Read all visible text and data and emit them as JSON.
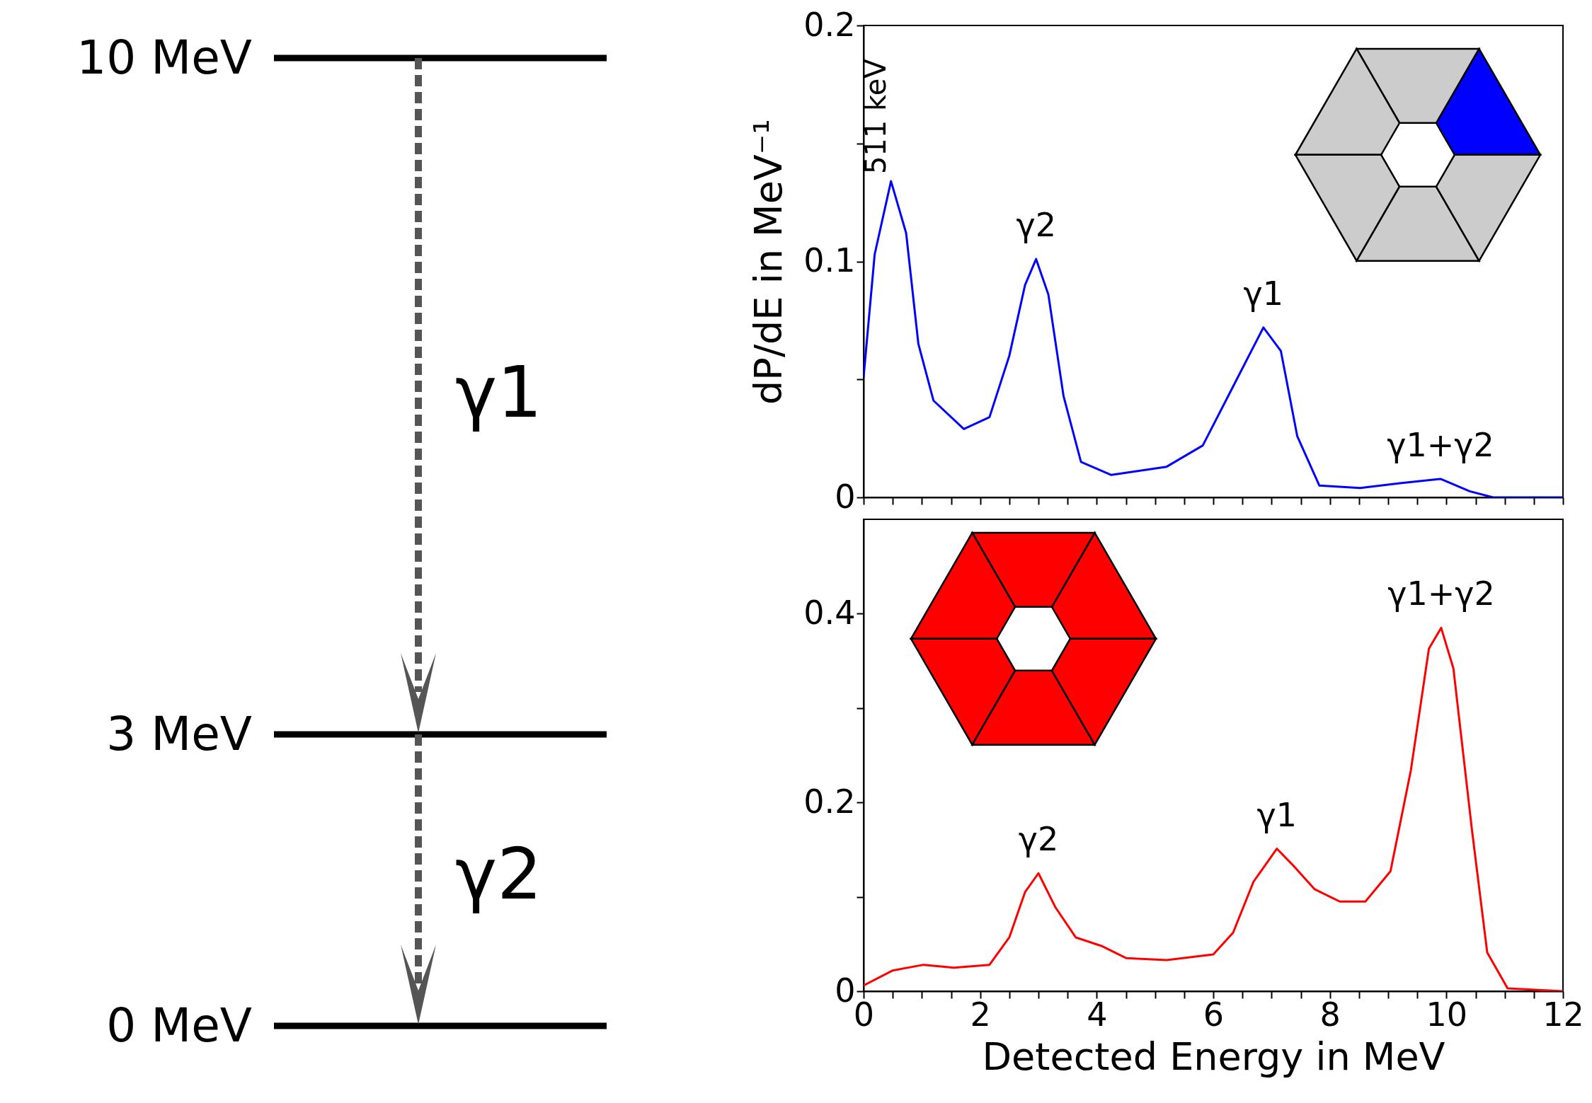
{
  "chart_data": [
    {
      "type": "other",
      "annotations": [
        "10 MeV",
        "3 MeV",
        "0 MeV",
        "γ1",
        "γ2"
      ]
    },
    {
      "type": "line",
      "ylabel": "dP/dE in MeV⁻¹",
      "tick_labels": "y",
      "grid": false,
      "x": [
        0,
        0.19,
        0.47,
        0.73,
        0.94,
        1.2,
        1.72,
        2.16,
        2.5,
        2.77,
        2.96,
        3.17,
        3.43,
        3.73,
        4.25,
        5.2,
        5.82,
        6.34,
        6.86,
        7.16,
        7.44,
        7.82,
        8.52,
        9.2,
        9.9,
        10.4,
        10.8,
        12
      ],
      "series": [
        {
          "color": "#0000ff",
          "values": [
            0.051,
            0.103,
            0.134,
            0.112,
            0.065,
            0.041,
            0.029,
            0.034,
            0.06,
            0.09,
            0.101,
            0.086,
            0.043,
            0.015,
            0.0095,
            0.013,
            0.022,
            0.047,
            0.072,
            0.062,
            0.026,
            0.005,
            0.004,
            0.006,
            0.0078,
            0.0026,
            0,
            0
          ]
        }
      ],
      "xlim": [
        0,
        12
      ],
      "ylim": [
        0,
        0.2
      ],
      "xticks": [
        0,
        {
          "value": 0.5,
          "label": null
        },
        {
          "value": 1,
          "label": null
        },
        {
          "value": 1.5,
          "label": null
        },
        2,
        {
          "value": 2.5,
          "label": null
        },
        {
          "value": 3,
          "label": null
        },
        {
          "value": 3.5,
          "label": null
        },
        4,
        {
          "value": 4.5,
          "label": null
        },
        {
          "value": 5,
          "label": null
        },
        {
          "value": 5.5,
          "label": null
        },
        6,
        {
          "value": 6.5,
          "label": null
        },
        {
          "value": 7,
          "label": null
        },
        {
          "value": 7.5,
          "label": null
        },
        8,
        {
          "value": 8.5,
          "label": null
        },
        {
          "value": 9,
          "label": null
        },
        {
          "value": 9.5,
          "label": null
        },
        10,
        {
          "value": 10.5,
          "label": null
        },
        {
          "value": 11,
          "label": null
        },
        {
          "value": 11.5,
          "label": null
        },
        12
      ],
      "yticks": [
        0,
        {
          "value": 0.05,
          "label": null
        },
        0.1,
        {
          "value": 0.15,
          "label": null
        },
        0.2
      ],
      "annotations": [
        {
          "text": "511 keV",
          "x": 0.47,
          "y": 0.134
        },
        {
          "text": "γ2",
          "x": 2.96,
          "y": 0.101
        },
        {
          "text": "γ1",
          "x": 6.86,
          "y": 0.072
        },
        {
          "text": "γ1+γ2",
          "x": 9.9,
          "y": 0.0078
        }
      ]
    },
    {
      "type": "line",
      "xlabel": "Detected Energy in MeV",
      "grid": false,
      "x": [
        0,
        0.5,
        1.03,
        1.55,
        2.16,
        2.5,
        2.77,
        3.0,
        3.29,
        3.64,
        4.08,
        4.51,
        5.2,
        6.0,
        6.34,
        6.69,
        7.09,
        7.39,
        7.74,
        8.17,
        8.61,
        9.04,
        9.39,
        9.7,
        9.91,
        10.12,
        10.44,
        10.7,
        11.05,
        12
      ],
      "series": [
        {
          "color": "#ff0000",
          "values": [
            0.006,
            0.022,
            0.028,
            0.025,
            0.028,
            0.057,
            0.105,
            0.125,
            0.089,
            0.057,
            0.048,
            0.035,
            0.033,
            0.039,
            0.062,
            0.116,
            0.151,
            0.132,
            0.108,
            0.095,
            0.095,
            0.127,
            0.234,
            0.363,
            0.385,
            0.342,
            0.17,
            0.041,
            0.003,
            0
          ]
        }
      ],
      "xlim": [
        0,
        12
      ],
      "ylim": [
        0,
        0.5
      ],
      "xticks": [
        0,
        {
          "value": 0.5,
          "label": null
        },
        {
          "value": 1,
          "label": null
        },
        {
          "value": 1.5,
          "label": null
        },
        2,
        {
          "value": 2.5,
          "label": null
        },
        {
          "value": 3,
          "label": null
        },
        {
          "value": 3.5,
          "label": null
        },
        4,
        {
          "value": 4.5,
          "label": null
        },
        {
          "value": 5,
          "label": null
        },
        {
          "value": 5.5,
          "label": null
        },
        6,
        {
          "value": 6.5,
          "label": null
        },
        {
          "value": 7,
          "label": null
        },
        {
          "value": 7.5,
          "label": null
        },
        8,
        {
          "value": 8.5,
          "label": null
        },
        {
          "value": 9,
          "label": null
        },
        {
          "value": 9.5,
          "label": null
        },
        10,
        {
          "value": 10.5,
          "label": null
        },
        {
          "value": 11,
          "label": null
        },
        {
          "value": 11.5,
          "label": null
        },
        12
      ],
      "yticks": [
        0,
        {
          "value": 0.1,
          "label": null
        },
        0.2,
        {
          "value": 0.3,
          "label": null
        },
        0.4
      ],
      "annotations": [
        {
          "text": "γ2",
          "x": 3.0,
          "y": 0.125
        },
        {
          "text": "γ1",
          "x": 7.09,
          "y": 0.151
        },
        {
          "text": "γ1+γ2",
          "x": 9.91,
          "y": 0.385
        }
      ]
    }
  ]
}
